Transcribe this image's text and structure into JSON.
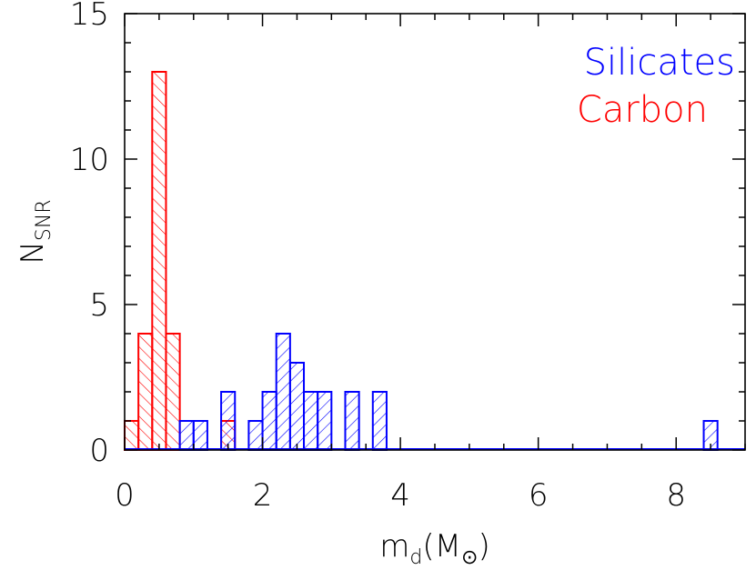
{
  "chart_data": {
    "type": "bar",
    "title": "",
    "xlabel": "m_d(M_sun)",
    "ylabel": "N_SNR",
    "xlabel_parts": {
      "main": "m",
      "sub": "d",
      "open": "(M",
      "sub_symbol": "⊙",
      "close": ")"
    },
    "ylabel_parts": {
      "main": "N",
      "sub": "SNR"
    },
    "xlim": [
      0,
      9
    ],
    "ylim": [
      0,
      15
    ],
    "xticks": [
      0,
      2,
      4,
      6,
      8
    ],
    "yticks": [
      0,
      5,
      10,
      15
    ],
    "xtick_labels": [
      "0",
      "2",
      "4",
      "6",
      "8"
    ],
    "ytick_labels": [
      "0",
      "5",
      "10",
      "15"
    ],
    "bin_width": 0.2,
    "grid": false,
    "legend_position": "top-right",
    "series": [
      {
        "name": "Silicates",
        "color": "#0000ff",
        "hatch": "forward-diagonal",
        "bins": [
          {
            "x0": 0.8,
            "x1": 1.0,
            "count": 1
          },
          {
            "x0": 1.0,
            "x1": 1.2,
            "count": 1
          },
          {
            "x0": 1.4,
            "x1": 1.6,
            "count": 2
          },
          {
            "x0": 1.8,
            "x1": 2.0,
            "count": 1
          },
          {
            "x0": 2.0,
            "x1": 2.2,
            "count": 2
          },
          {
            "x0": 2.2,
            "x1": 2.4,
            "count": 4
          },
          {
            "x0": 2.4,
            "x1": 2.6,
            "count": 3
          },
          {
            "x0": 2.6,
            "x1": 2.8,
            "count": 2
          },
          {
            "x0": 2.8,
            "x1": 3.0,
            "count": 2
          },
          {
            "x0": 3.2,
            "x1": 3.4,
            "count": 2
          },
          {
            "x0": 3.6,
            "x1": 3.8,
            "count": 2
          },
          {
            "x0": 8.4,
            "x1": 8.6,
            "count": 1
          }
        ]
      },
      {
        "name": "Carbon",
        "color": "#ff0000",
        "hatch": "back-diagonal",
        "bins": [
          {
            "x0": 0.0,
            "x1": 0.2,
            "count": 1
          },
          {
            "x0": 0.2,
            "x1": 0.4,
            "count": 4
          },
          {
            "x0": 0.4,
            "x1": 0.6,
            "count": 13
          },
          {
            "x0": 0.6,
            "x1": 0.8,
            "count": 4
          },
          {
            "x0": 1.4,
            "x1": 1.6,
            "count": 1
          }
        ]
      }
    ]
  }
}
